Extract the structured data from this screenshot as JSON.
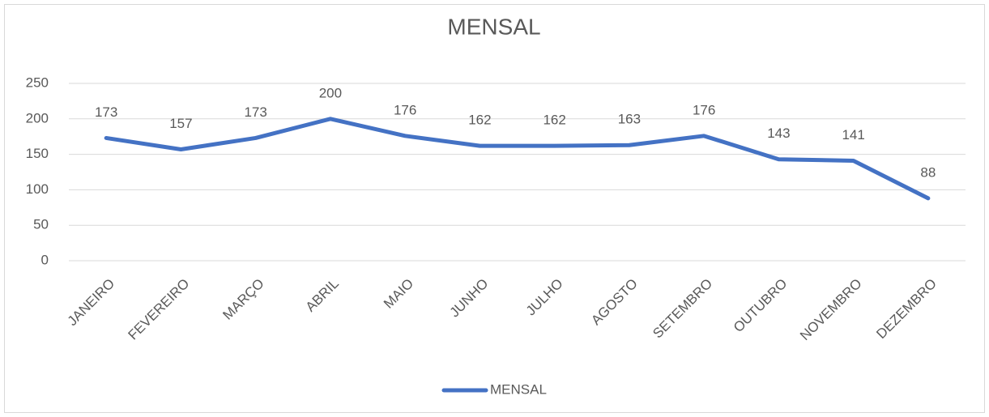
{
  "chart_data": {
    "type": "line",
    "title": "MENSAL",
    "categories": [
      "JANEIRO",
      "FEVEREIRO",
      "MARÇO",
      "ABRIL",
      "MAIO",
      "JUNHO",
      "JULHO",
      "AGOSTO",
      "SETEMBRO",
      "OUTUBRO",
      "NOVEMBRO",
      "DEZEMBRO"
    ],
    "series": [
      {
        "name": "MENSAL",
        "color": "#4472c4",
        "values": [
          173,
          157,
          173,
          200,
          176,
          162,
          162,
          163,
          176,
          143,
          141,
          88
        ]
      }
    ],
    "ylim": [
      0,
      250
    ],
    "yticks": [
      0,
      50,
      100,
      150,
      200,
      250
    ],
    "grid": true,
    "legend": "bottom",
    "data_labels": true
  }
}
